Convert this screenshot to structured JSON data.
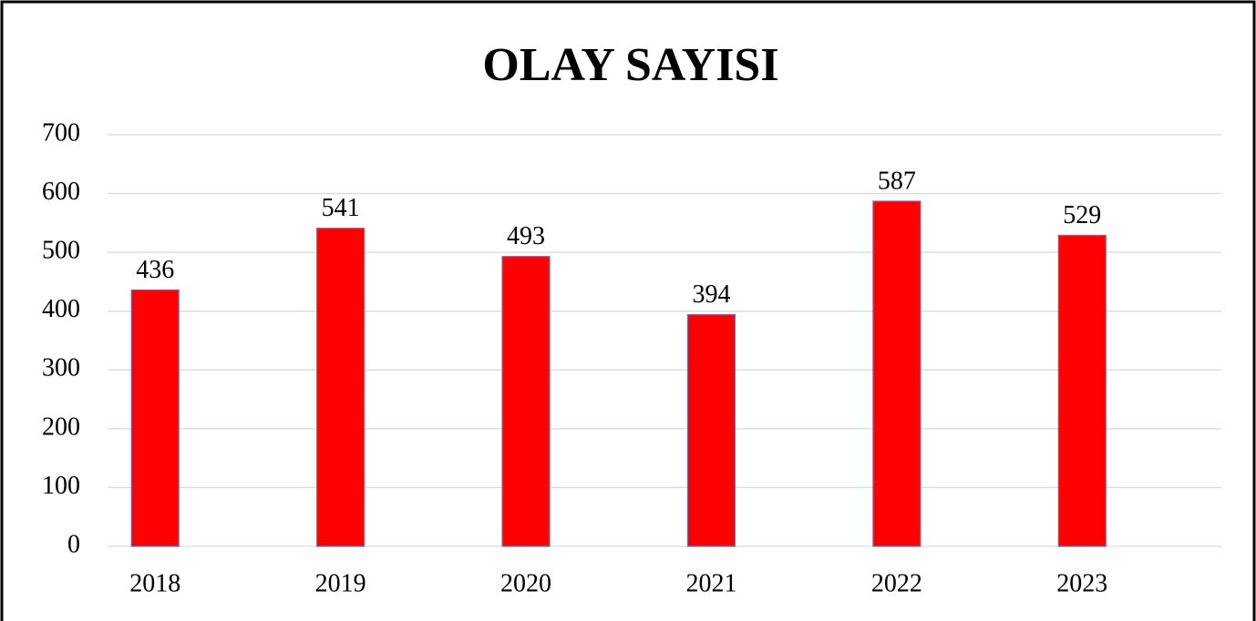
{
  "chart_data": {
    "type": "bar",
    "title": "OLAY SAYISI",
    "categories": [
      "2018",
      "2019",
      "2020",
      "2021",
      "2022",
      "2023"
    ],
    "values": [
      436,
      541,
      493,
      394,
      587,
      529
    ],
    "color": "#ff0000",
    "ylim": [
      0,
      700
    ],
    "yticks": [
      0,
      100,
      200,
      300,
      400,
      500,
      600,
      700
    ],
    "grid": true
  }
}
